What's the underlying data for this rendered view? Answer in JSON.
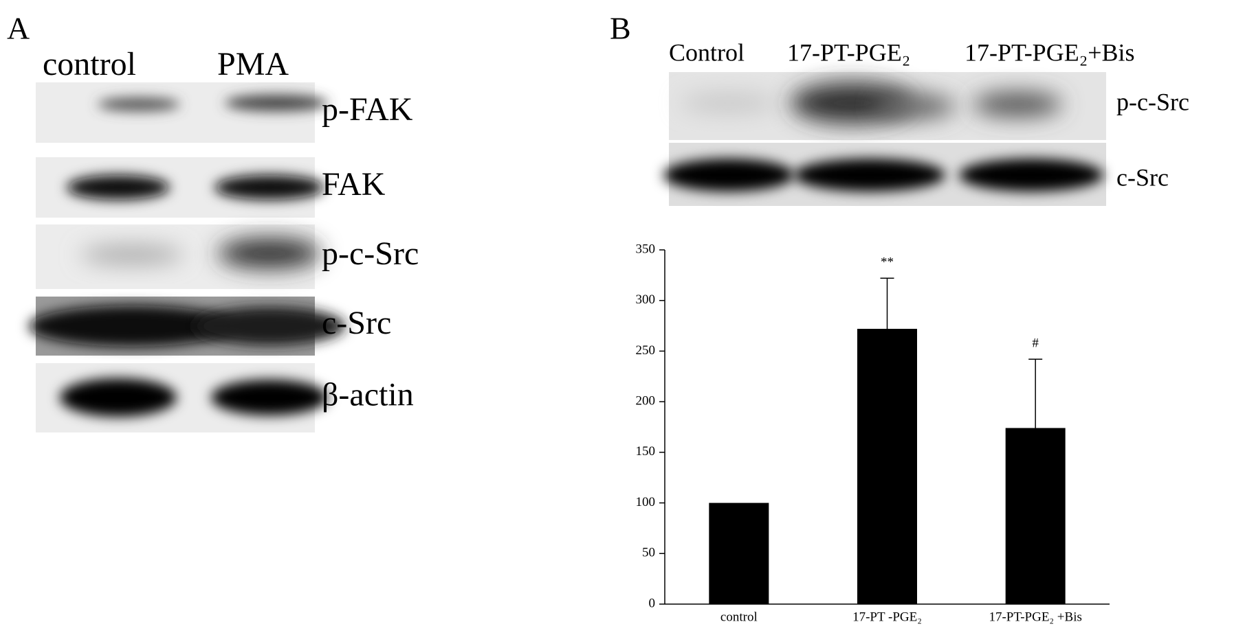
{
  "panel_a": {
    "label": "A",
    "lanes": [
      "control",
      "PMA"
    ],
    "blots": [
      "p-FAK",
      "FAK",
      "p-c-Src",
      "c-Src",
      "β-actin"
    ]
  },
  "panel_b": {
    "label": "B",
    "lanes": [
      "Control",
      "17-PT-PGE₂",
      "17-PT-PGE₂+Bis"
    ],
    "blots": [
      "p-c-Src",
      "c-Src"
    ]
  },
  "chart_data": {
    "type": "bar",
    "categories": [
      "control",
      "17-PT -PGE₂",
      "17-PT-PGE₂ +Bis"
    ],
    "values": [
      100,
      272,
      174
    ],
    "errors": [
      null,
      50,
      68
    ],
    "annotations": [
      null,
      "**",
      "#"
    ],
    "color": "#000000",
    "ylim": [
      0,
      350
    ],
    "yticks": [
      0,
      50,
      100,
      150,
      200,
      250,
      300,
      350
    ]
  }
}
